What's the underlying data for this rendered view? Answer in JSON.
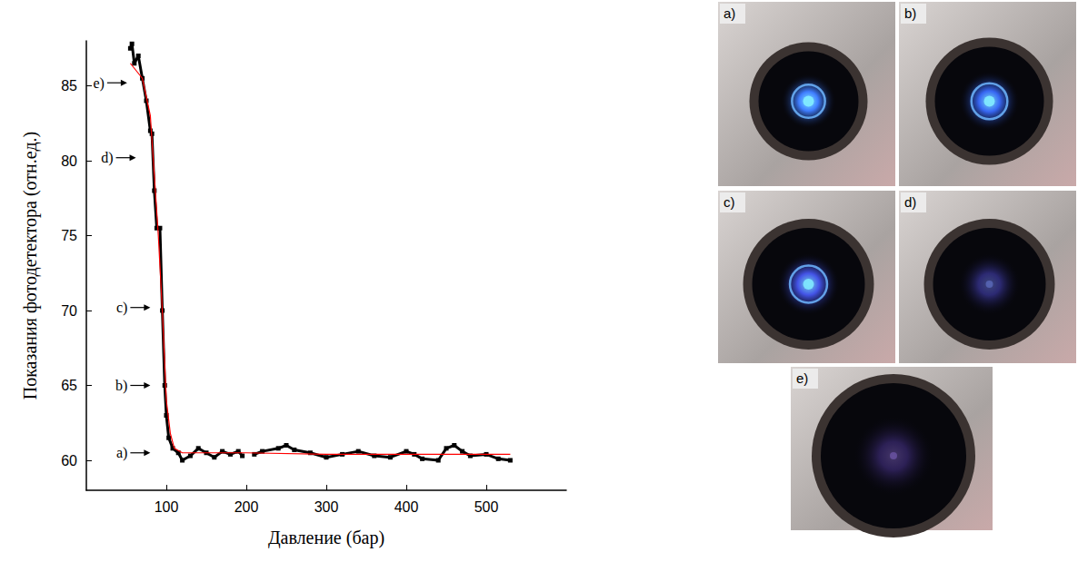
{
  "chart_data": {
    "type": "line",
    "x_label": "Давление (бар)",
    "y_label": "Показания фотодетектора (отн.ед.)",
    "series": [
      {
        "x": [
          55,
          57,
          60,
          65,
          70,
          75,
          80,
          82,
          85,
          88,
          92,
          95,
          98,
          100,
          103,
          108,
          115,
          120,
          130,
          140,
          150,
          160,
          170,
          180,
          190,
          195,
          200,
          210,
          220,
          240,
          250,
          260,
          280,
          300,
          320,
          340,
          360,
          380,
          400,
          410,
          420,
          440,
          450,
          460,
          470,
          480,
          500,
          515,
          530
        ],
        "values": [
          87.5,
          87.8,
          86.5,
          87,
          85.5,
          84,
          82,
          81.8,
          78,
          75.5,
          75.5,
          70,
          65,
          63,
          61.5,
          60.8,
          60.5,
          60,
          60.3,
          60.8,
          60.5,
          60.2,
          60.6,
          60.4,
          60.6,
          60.3,
          null,
          60.4,
          60.6,
          60.8,
          61,
          60.7,
          60.5,
          60.2,
          60.4,
          60.6,
          60.3,
          60.2,
          60.6,
          60.4,
          60.1,
          60,
          60.8,
          61,
          60.6,
          60.3,
          60.4,
          60.1,
          60
        ],
        "color": "#000000",
        "marker": "square",
        "line_style": "solid"
      },
      {
        "x": [
          55,
          70,
          80,
          90,
          95,
          100,
          105,
          110,
          120,
          200,
          300,
          400,
          530
        ],
        "values": [
          86.5,
          85.5,
          83,
          75,
          70,
          64,
          61.8,
          60.8,
          60.5,
          60.5,
          60.4,
          60.4,
          60.4
        ],
        "color": "#ff0000",
        "marker": "none",
        "line_style": "solid"
      }
    ],
    "xlim": [
      0,
      600
    ],
    "xticks": [
      100,
      200,
      300,
      400,
      500
    ],
    "ylim": [
      58,
      88
    ],
    "yticks": [
      60,
      65,
      70,
      75,
      80,
      85
    ],
    "grid": false,
    "annotations": [
      {
        "text": "e)",
        "x": 51,
        "y": 85.2
      },
      {
        "text": "d)",
        "x": 62,
        "y": 80.2
      },
      {
        "text": "c)",
        "x": 80,
        "y": 70.2
      },
      {
        "text": "b)",
        "x": 80,
        "y": 65
      },
      {
        "text": "a)",
        "x": 80,
        "y": 60.5
      }
    ]
  },
  "photos": {
    "labels": [
      "a)",
      "b)",
      "c)",
      "d)",
      "e)"
    ]
  }
}
